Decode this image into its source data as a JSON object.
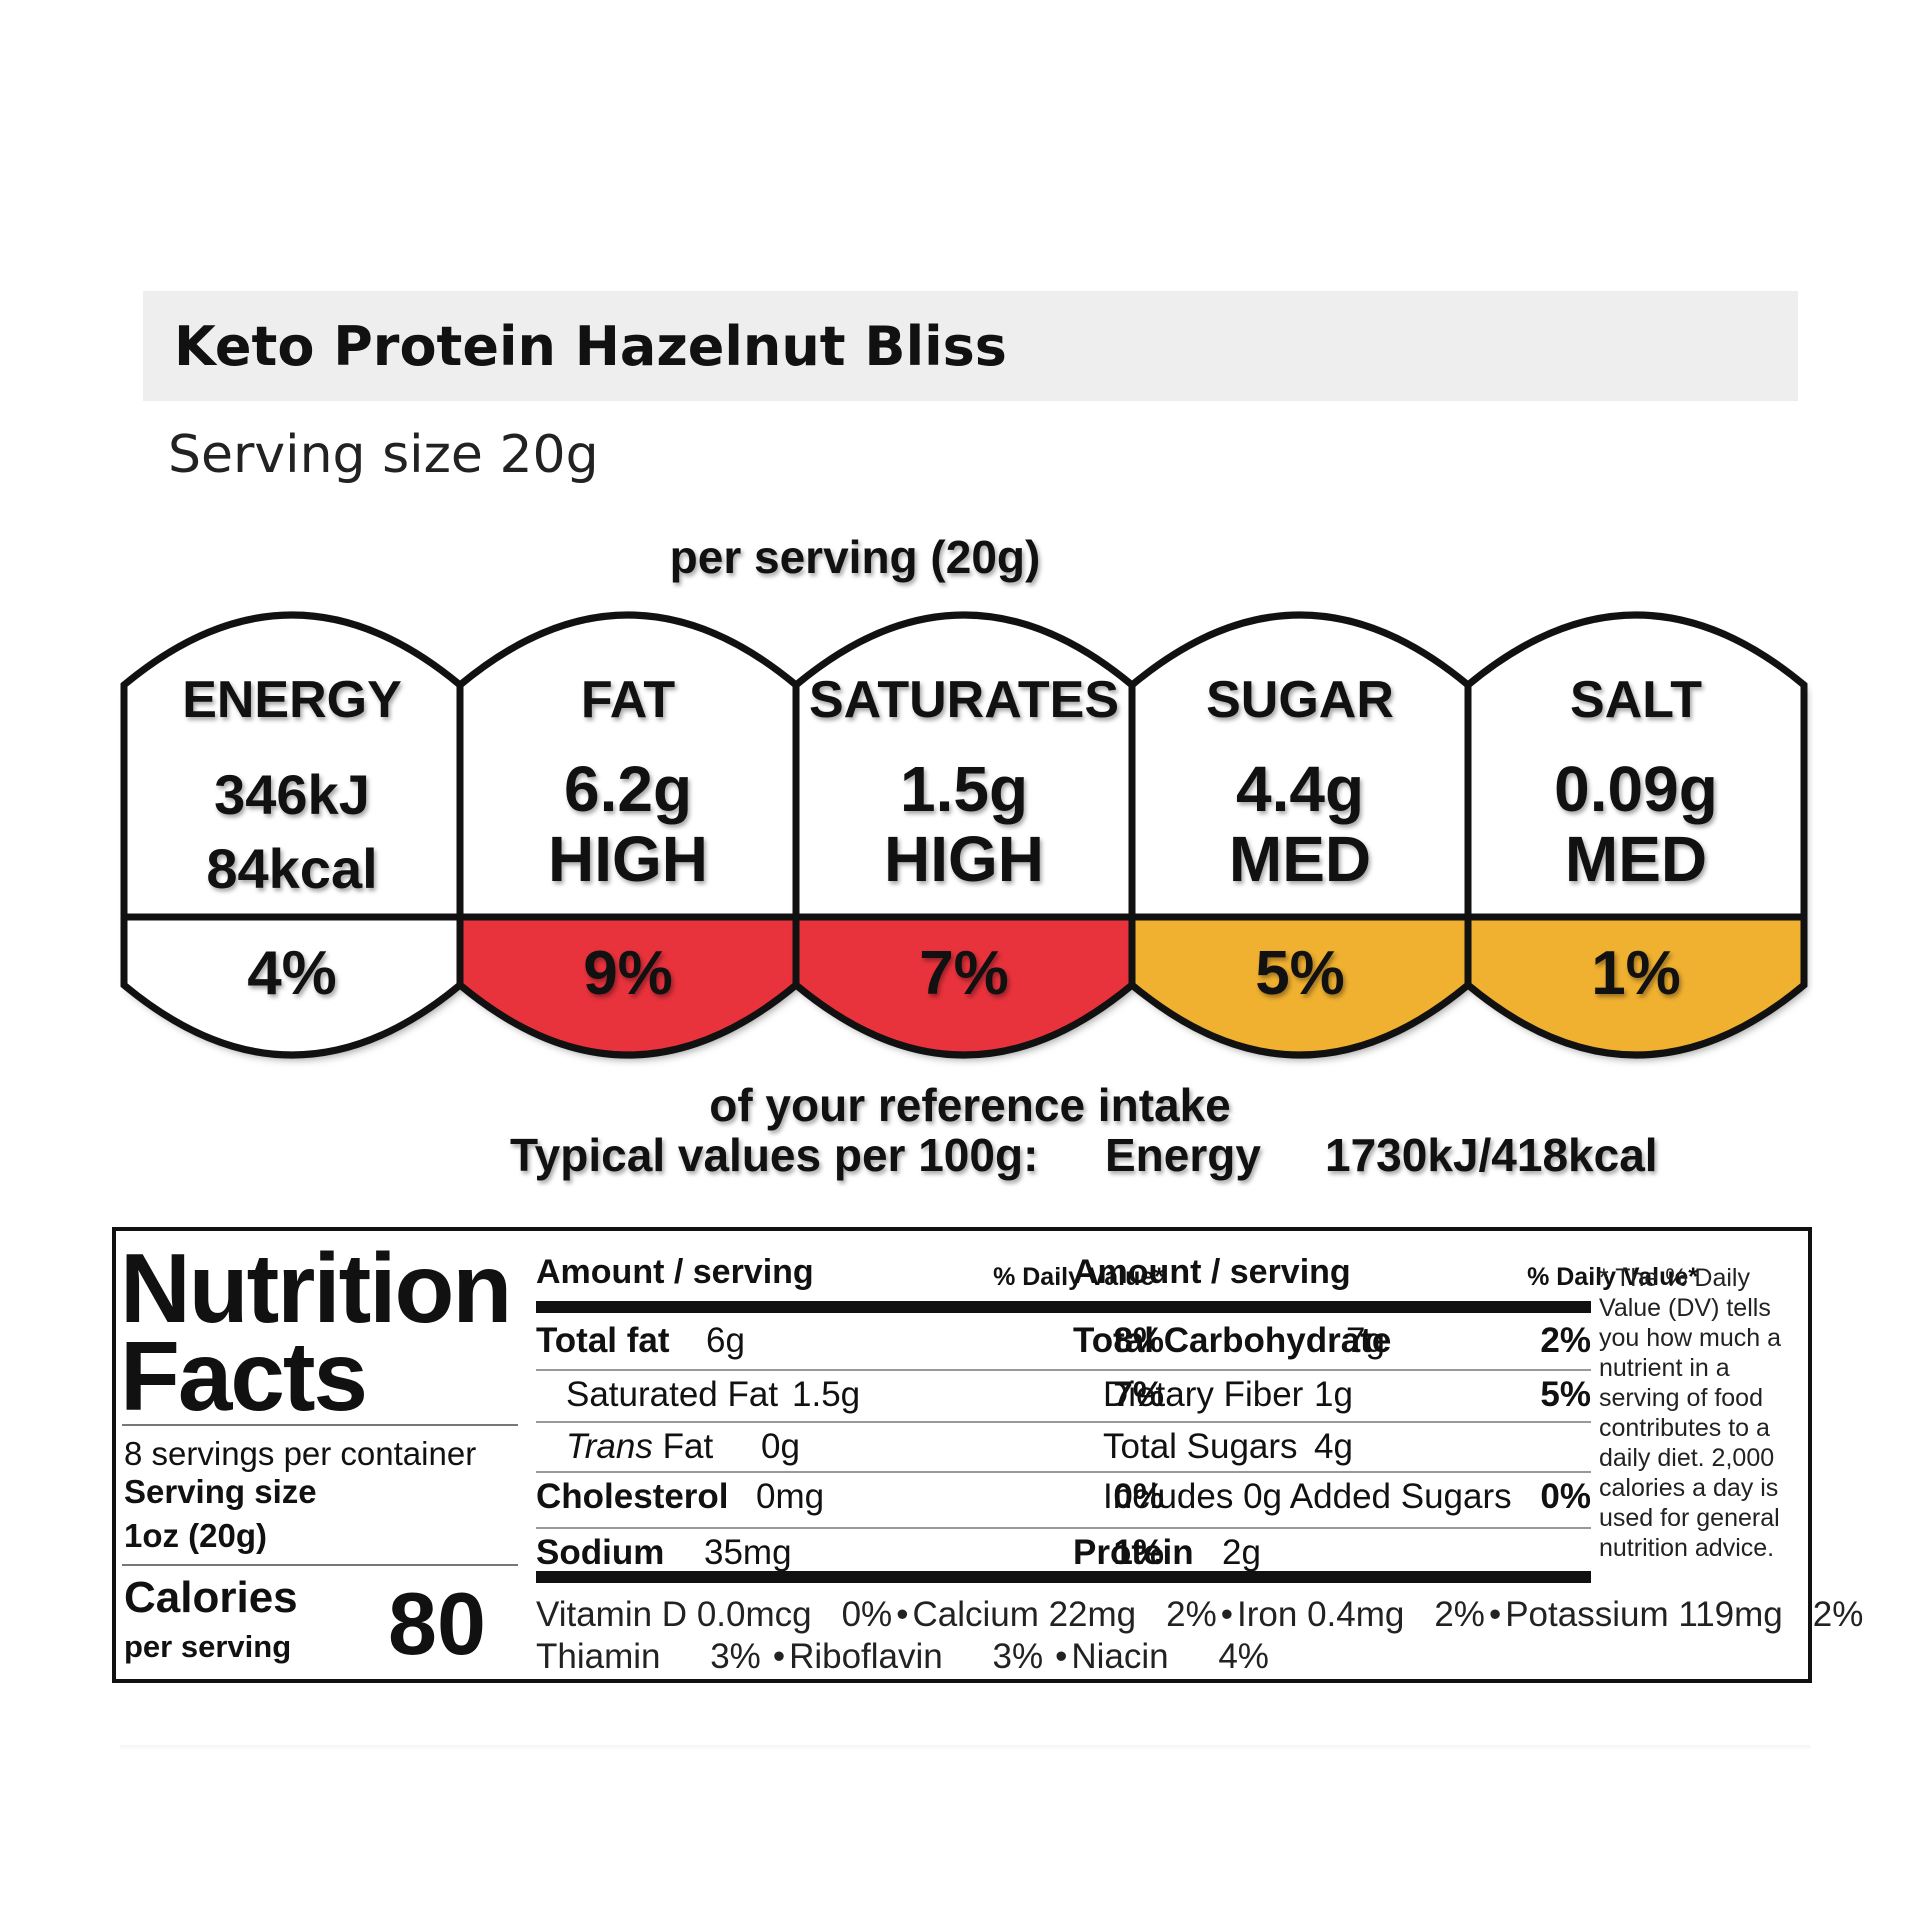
{
  "product": {
    "name": "Keto Protein Hazelnut Bliss",
    "serving_size": "Serving size 20g"
  },
  "traffic_light": {
    "per_serving": "per serving  (20g)",
    "segments": [
      {
        "label": "ENERGY",
        "line1": "346kJ",
        "line2": "84kcal",
        "percent": "4%",
        "color": "#ffffff"
      },
      {
        "label": "FAT",
        "line1": "6.2g",
        "line2": "HIGH",
        "percent": "9%",
        "color": "#e8323c"
      },
      {
        "label": "SATURATES",
        "line1": "1.5g",
        "line2": "HIGH",
        "percent": "7%",
        "color": "#e8323c"
      },
      {
        "label": "SUGAR",
        "line1": "4.4g",
        "line2": "MED",
        "percent": "5%",
        "color": "#f0b030"
      },
      {
        "label": "SALT",
        "line1": "0.09g",
        "line2": "MED",
        "percent": "1%",
        "color": "#f0b030"
      }
    ],
    "reference_intake": "of your reference intake",
    "typical_values": "Typical values per 100g:",
    "typical_energy_label": "Energy",
    "typical_energy_value": "1730kJ/418kcal"
  },
  "nutrition_facts": {
    "title_line1": "Nutrition",
    "title_line2": "Facts",
    "servings_per_container": "8 servings per container",
    "serving_size_label": "Serving size",
    "serving_size_value": "1oz (20g)",
    "calories_label": "Calories",
    "per_serving_label": "per serving",
    "calories_value": "80",
    "amount_header": "Amount / serving",
    "dv_header": "% Daily Value*",
    "left_rows": [
      {
        "name": "Total fat",
        "amount": "6g",
        "dv": "8%"
      },
      {
        "name": "Saturated Fat",
        "amount": "1.5g",
        "dv": "7%"
      },
      {
        "name_italic": "Trans",
        "name": "Fat",
        "amount": "0g",
        "dv": ""
      },
      {
        "name": "Cholesterol",
        "amount": "0mg",
        "dv": "0%"
      },
      {
        "name": "Sodium",
        "amount": "35mg",
        "dv": "1%"
      }
    ],
    "right_rows": [
      {
        "name": "Total Carbohydrate",
        "amount": "7g",
        "dv": "2%"
      },
      {
        "name": "Dietary Fiber",
        "amount": "1g",
        "dv": "5%"
      },
      {
        "name": "Total Sugars",
        "amount": "4g",
        "dv": ""
      },
      {
        "name": "Includes 0g Added Sugars",
        "amount": "",
        "dv": "0%"
      },
      {
        "name": "Protein",
        "amount": "2g",
        "dv": ""
      }
    ],
    "dv_footnote": "* The % Daily Value (DV) tells you how much a nutrient in a serving of food contributes to a daily diet. 2,000 calories a day is used for general nutrition advice.",
    "vitamins_line1": [
      {
        "name": "Vitamin D",
        "amount": "0.0mcg",
        "dv": "0%"
      },
      {
        "name": "Calcium",
        "amount": "22mg",
        "dv": "2%"
      },
      {
        "name": "Iron",
        "amount": "0.4mg",
        "dv": "2%"
      },
      {
        "name": "Potassium",
        "amount": "119mg",
        "dv": "2%"
      }
    ],
    "vitamins_line2": [
      {
        "name": "Thiamin",
        "dv": "3%"
      },
      {
        "name": "Riboflavin",
        "dv": "3%"
      },
      {
        "name": "Niacin",
        "dv": "4%"
      }
    ],
    "bullet": "•"
  }
}
